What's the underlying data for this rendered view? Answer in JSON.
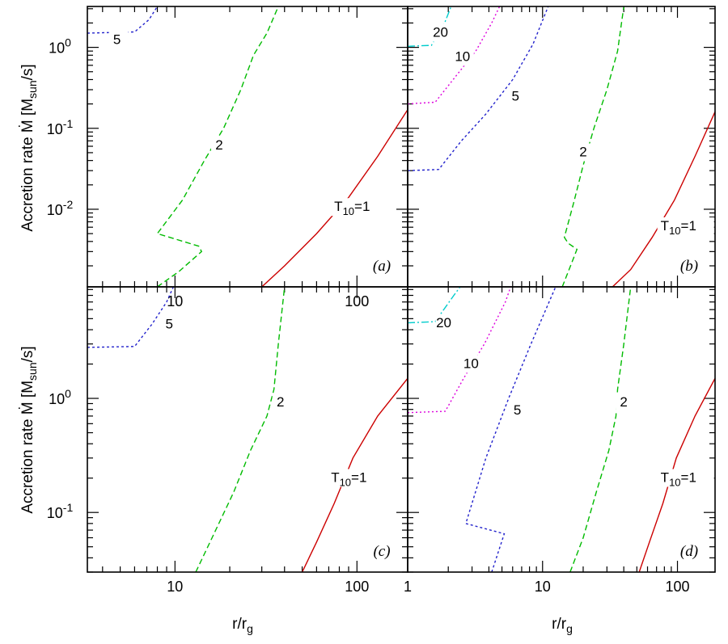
{
  "figure": {
    "ylabel": "Accretion rate Ṁ [M",
    "ylabel_sub": "sun",
    "ylabel_end": "/s]",
    "xlabel": "r/r",
    "xlabel_sub": "g"
  },
  "chart_data": [
    {
      "panel": "(a)",
      "type": "line",
      "xscale": "log",
      "yscale": "log",
      "xlim": [
        3.3,
        190
      ],
      "ylim": [
        0.0011,
        3.2
      ],
      "xticks": [
        {
          "v": 10,
          "label": "10"
        },
        {
          "v": 100,
          "label": "100"
        }
      ],
      "yticks": [
        {
          "v": 0.01,
          "label": "10",
          "exp": "-2"
        },
        {
          "v": 0.1,
          "label": "10",
          "exp": "-1"
        },
        {
          "v": 1,
          "label": "10",
          "exp": "0"
        }
      ],
      "series": [
        {
          "name": "T10=1",
          "label": "T",
          "label_sub": "10",
          "label_end": "=1",
          "color": "#cc0000",
          "dash": "",
          "label_at": [
            75,
            0.0095
          ],
          "points": [
            [
              30,
              0.0011
            ],
            [
              40,
              0.002
            ],
            [
              60,
              0.005
            ],
            [
              90,
              0.014
            ],
            [
              130,
              0.045
            ],
            [
              190,
              0.17
            ]
          ]
        },
        {
          "name": "2",
          "label": "2",
          "color": "#00bb00",
          "dash": "7,4",
          "label_at": [
            17.5,
            0.055
          ],
          "points": [
            [
              8,
              0.0011
            ],
            [
              10.5,
              0.0017
            ],
            [
              14,
              0.003
            ],
            [
              13.5,
              0.0035
            ],
            [
              8,
              0.005
            ],
            [
              11,
              0.013
            ],
            [
              14.5,
              0.04
            ],
            [
              18.5,
              0.1
            ],
            [
              23,
              0.3
            ],
            [
              27,
              0.8
            ],
            [
              32,
              1.5
            ],
            [
              37,
              3.2
            ]
          ]
        },
        {
          "name": "5",
          "label": "5",
          "color": "#2222cc",
          "dash": "3,3",
          "label_at": [
            4.8,
            1.1
          ],
          "points": [
            [
              3.3,
              1.5
            ],
            [
              6,
              1.55
            ],
            [
              7.2,
              2.2
            ],
            [
              8,
              3.2
            ]
          ]
        }
      ]
    },
    {
      "panel": "(b)",
      "type": "line",
      "xscale": "log",
      "yscale": "log",
      "xlim": [
        1,
        190
      ],
      "ylim": [
        0.0011,
        3.2
      ],
      "xticks": [
        {
          "v": 1,
          "label": ""
        },
        {
          "v": 10,
          "label": ""
        },
        {
          "v": 100,
          "label": ""
        }
      ],
      "yticks": [
        {
          "v": 0.01,
          "label": ""
        },
        {
          "v": 0.1,
          "label": ""
        },
        {
          "v": 1,
          "label": ""
        }
      ],
      "series": [
        {
          "name": "T10=1",
          "label": "T",
          "label_sub": "10",
          "label_end": "=1",
          "color": "#cc0000",
          "dash": "",
          "label_at": [
            75,
            0.0055
          ],
          "points": [
            [
              33,
              0.0011
            ],
            [
              45,
              0.0018
            ],
            [
              65,
              0.0045
            ],
            [
              95,
              0.013
            ],
            [
              135,
              0.045
            ],
            [
              190,
              0.16
            ]
          ]
        },
        {
          "name": "2",
          "label": "2",
          "color": "#00bb00",
          "dash": "7,4",
          "label_at": [
            20,
            0.045
          ],
          "points": [
            [
              14,
              0.0011
            ],
            [
              16.5,
              0.0022
            ],
            [
              18,
              0.0032
            ],
            [
              15.5,
              0.0038
            ],
            [
              14.5,
              0.0045
            ],
            [
              17,
              0.012
            ],
            [
              20,
              0.035
            ],
            [
              24,
              0.1
            ],
            [
              30,
              0.3
            ],
            [
              36,
              0.9
            ],
            [
              40,
              3.2
            ]
          ]
        },
        {
          "name": "5",
          "label": "5",
          "color": "#2222cc",
          "dash": "3,3",
          "label_at": [
            6.3,
            0.22
          ],
          "points": [
            [
              1,
              0.03
            ],
            [
              1.7,
              0.031
            ],
            [
              2.5,
              0.07
            ],
            [
              3.8,
              0.15
            ],
            [
              6,
              0.4
            ],
            [
              8.5,
              1.1
            ],
            [
              11,
              3.2
            ]
          ]
        },
        {
          "name": "10",
          "label": "10",
          "color": "#dd00dd",
          "dash": "2,3",
          "label_at": [
            2.55,
            0.68
          ],
          "points": [
            [
              1,
              0.2
            ],
            [
              1.6,
              0.21
            ],
            [
              2.3,
              0.45
            ],
            [
              3.2,
              0.9
            ],
            [
              4.2,
              2
            ],
            [
              4.8,
              3.2
            ]
          ]
        },
        {
          "name": "20",
          "label": "20",
          "color": "#00cccc",
          "dash": "9,3,2,3",
          "label_at": [
            1.75,
            1.35
          ],
          "points": [
            [
              1,
              1.03
            ],
            [
              1.5,
              1.06
            ],
            [
              1.9,
              2.1
            ],
            [
              2.1,
              3.2
            ]
          ]
        }
      ]
    },
    {
      "panel": "(c)",
      "type": "line",
      "xscale": "log",
      "yscale": "log",
      "xlim": [
        3.3,
        190
      ],
      "ylim": [
        0.03,
        9.5
      ],
      "xticks": [
        {
          "v": 10,
          "label": "10"
        },
        {
          "v": 100,
          "label": "100"
        }
      ],
      "yticks": [
        {
          "v": 0.1,
          "label": "10",
          "exp": "-1"
        },
        {
          "v": 1,
          "label": "10",
          "exp": "0"
        }
      ],
      "series": [
        {
          "name": "T10=1",
          "label": "T",
          "label_sub": "10",
          "label_end": "=1",
          "color": "#cc0000",
          "dash": "",
          "label_at": [
            72,
            0.185
          ],
          "points": [
            [
              50,
              0.03
            ],
            [
              60,
              0.055
            ],
            [
              75,
              0.12
            ],
            [
              95,
              0.3
            ],
            [
              130,
              0.7
            ],
            [
              190,
              1.5
            ]
          ]
        },
        {
          "name": "2",
          "label": "2",
          "color": "#00bb00",
          "dash": "7,4",
          "label_at": [
            38,
            0.85
          ],
          "points": [
            [
              13,
              0.03
            ],
            [
              16,
              0.06
            ],
            [
              21,
              0.15
            ],
            [
              26,
              0.35
            ],
            [
              32,
              0.7
            ],
            [
              35,
              1.2
            ],
            [
              37,
              3
            ],
            [
              40,
              9.5
            ]
          ]
        },
        {
          "name": "5",
          "label": "5",
          "color": "#2222cc",
          "dash": "3,3",
          "label_at": [
            9.3,
            4.1
          ],
          "points": [
            [
              3.3,
              2.8
            ],
            [
              6,
              2.85
            ],
            [
              7.5,
              4.5
            ],
            [
              9,
              7
            ],
            [
              9.8,
              9.5
            ]
          ]
        }
      ]
    },
    {
      "panel": "(d)",
      "type": "line",
      "xscale": "log",
      "yscale": "log",
      "xlim": [
        1,
        190
      ],
      "ylim": [
        0.03,
        9.5
      ],
      "xticks": [
        {
          "v": 1,
          "label": "1"
        },
        {
          "v": 10,
          "label": "10"
        },
        {
          "v": 100,
          "label": "100"
        }
      ],
      "yticks": [
        {
          "v": 0.1,
          "label": ""
        },
        {
          "v": 1,
          "label": ""
        }
      ],
      "series": [
        {
          "name": "T10=1",
          "label": "T",
          "label_sub": "10",
          "label_end": "=1",
          "color": "#cc0000",
          "dash": "",
          "label_at": [
            75,
            0.185
          ],
          "points": [
            [
              52,
              0.03
            ],
            [
              62,
              0.055
            ],
            [
              78,
              0.12
            ],
            [
              98,
              0.3
            ],
            [
              135,
              0.7
            ],
            [
              190,
              1.5
            ]
          ]
        },
        {
          "name": "2",
          "label": "2",
          "color": "#00bb00",
          "dash": "7,4",
          "label_at": [
            40,
            0.85
          ],
          "points": [
            [
              16,
              0.03
            ],
            [
              20,
              0.06
            ],
            [
              25,
              0.15
            ],
            [
              31,
              0.35
            ],
            [
              35,
              0.7
            ],
            [
              36,
              1.2
            ],
            [
              40,
              3
            ],
            [
              45,
              9.5
            ]
          ]
        },
        {
          "name": "5",
          "label": "5",
          "color": "#2222cc",
          "dash": "3,3",
          "label_at": [
            6.5,
            0.72
          ],
          "points": [
            [
              4.2,
              0.03
            ],
            [
              5.2,
              0.065
            ],
            [
              2.7,
              0.08
            ],
            [
              3.8,
              0.3
            ],
            [
              5.6,
              1
            ],
            [
              8.2,
              3
            ],
            [
              12.5,
              9.5
            ]
          ]
        },
        {
          "name": "10",
          "label": "10",
          "color": "#dd00dd",
          "dash": "2,3",
          "label_at": [
            2.95,
            1.85
          ],
          "points": [
            [
              1,
              0.75
            ],
            [
              1.9,
              0.77
            ],
            [
              2.6,
              1.5
            ],
            [
              3.7,
              3
            ],
            [
              5.3,
              7
            ],
            [
              5.8,
              9.5
            ]
          ]
        },
        {
          "name": "20",
          "label": "20",
          "color": "#00cccc",
          "dash": "9,3,2,3",
          "label_at": [
            1.85,
            4.2
          ],
          "points": [
            [
              1,
              4.6
            ],
            [
              1.6,
              4.7
            ],
            [
              2.2,
              8
            ],
            [
              2.45,
              9.5
            ]
          ]
        }
      ]
    }
  ]
}
